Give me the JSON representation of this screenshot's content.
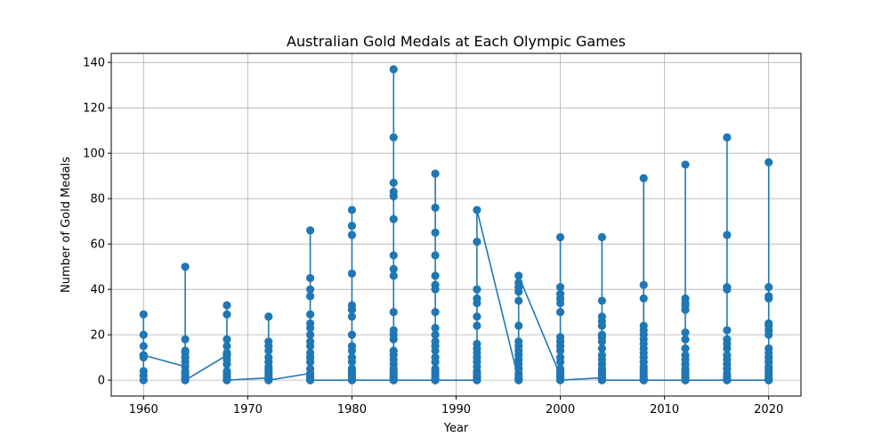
{
  "chart_data": {
    "type": "line",
    "title": "Australian Gold Medals at Each Olympic Games",
    "xlabel": "Year",
    "ylabel": "Number of Gold Medals",
    "xlim": [
      1956.9,
      2023.1
    ],
    "ylim": [
      -7,
      144
    ],
    "x_ticks": [
      1960,
      1970,
      1980,
      1990,
      2000,
      2010,
      2020
    ],
    "y_ticks": [
      0,
      20,
      40,
      60,
      80,
      100,
      120,
      140
    ],
    "grid": true,
    "color": "#1f77b4",
    "series": [
      {
        "x": [
          1960,
          1960,
          1960,
          1960,
          1960,
          1960,
          1960,
          1960,
          1960,
          1964,
          1964,
          1964,
          1964,
          1964,
          1964,
          1964,
          1964,
          1964,
          1964,
          1964,
          1964,
          1964,
          1968,
          1968,
          1968,
          1968,
          1968,
          1968,
          1968,
          1968,
          1968,
          1968,
          1968,
          1968,
          1968,
          1968,
          1972,
          1972,
          1972,
          1972,
          1972,
          1972,
          1972,
          1972,
          1972,
          1972,
          1972,
          1972,
          1972,
          1972,
          1976,
          1976,
          1976,
          1976,
          1976,
          1976,
          1976,
          1976,
          1976,
          1976,
          1976,
          1976,
          1976,
          1976,
          1976,
          1976,
          1976,
          1976,
          1976,
          1980,
          1980,
          1980,
          1980,
          1980,
          1980,
          1980,
          1980,
          1980,
          1980,
          1980,
          1980,
          1980,
          1980,
          1980,
          1980,
          1980,
          1980,
          1980,
          1980,
          1980,
          1984,
          1984,
          1984,
          1984,
          1984,
          1984,
          1984,
          1984,
          1984,
          1984,
          1984,
          1984,
          1984,
          1984,
          1984,
          1984,
          1984,
          1984,
          1984,
          1984,
          1984,
          1984,
          1984,
          1984,
          1984,
          1988,
          1988,
          1988,
          1988,
          1988,
          1988,
          1988,
          1988,
          1988,
          1988,
          1988,
          1988,
          1988,
          1988,
          1988,
          1988,
          1988,
          1988,
          1988,
          1988,
          1988,
          1988,
          1988,
          1992,
          1992,
          1992,
          1992,
          1992,
          1992,
          1992,
          1992,
          1992,
          1992,
          1992,
          1992,
          1992,
          1992,
          1992,
          1992,
          1992,
          1992,
          1992,
          1996,
          1996,
          1996,
          1996,
          1996,
          1996,
          1996,
          1996,
          1996,
          1996,
          1996,
          1996,
          1996,
          1996,
          1996,
          1996,
          1996,
          1996,
          2000,
          2000,
          2000,
          2000,
          2000,
          2000,
          2000,
          2000,
          2000,
          2000,
          2000,
          2000,
          2000,
          2000,
          2000,
          2000,
          2000,
          2000,
          2000,
          2004,
          2004,
          2004,
          2004,
          2004,
          2004,
          2004,
          2004,
          2004,
          2004,
          2004,
          2004,
          2004,
          2004,
          2004,
          2004,
          2004,
          2004,
          2004,
          2008,
          2008,
          2008,
          2008,
          2008,
          2008,
          2008,
          2008,
          2008,
          2008,
          2008,
          2008,
          2008,
          2008,
          2008,
          2008,
          2008,
          2008,
          2008,
          2008,
          2008,
          2012,
          2012,
          2012,
          2012,
          2012,
          2012,
          2012,
          2012,
          2012,
          2012,
          2012,
          2012,
          2012,
          2012,
          2012,
          2012,
          2012,
          2012,
          2012,
          2016,
          2016,
          2016,
          2016,
          2016,
          2016,
          2016,
          2016,
          2016,
          2016,
          2016,
          2016,
          2016,
          2016,
          2016,
          2016,
          2016,
          2016,
          2020,
          2020,
          2020,
          2020,
          2020,
          2020,
          2020,
          2020,
          2020,
          2020,
          2020,
          2020,
          2020,
          2020,
          2020,
          2020,
          2020,
          2020,
          2020,
          2020,
          2020
        ],
        "y": [
          11,
          0,
          4,
          2,
          29,
          20,
          15,
          10,
          11,
          6,
          0,
          2,
          1,
          18,
          50,
          13,
          12,
          10,
          8,
          4,
          3,
          0,
          11,
          0,
          2,
          1,
          3,
          4,
          7,
          9,
          12,
          15,
          18,
          29,
          33,
          0,
          1,
          0,
          2,
          3,
          4,
          6,
          8,
          10,
          13,
          15,
          17,
          28,
          5,
          0,
          3,
          0,
          1,
          2,
          5,
          8,
          10,
          12,
          17,
          20,
          23,
          25,
          29,
          37,
          40,
          45,
          66,
          15,
          0,
          0,
          0,
          1,
          2,
          3,
          5,
          8,
          10,
          13,
          15,
          20,
          28,
          31,
          33,
          47,
          64,
          68,
          75,
          5,
          4,
          0,
          0,
          0,
          1,
          2,
          3,
          5,
          7,
          9,
          11,
          13,
          18,
          20,
          22,
          30,
          46,
          49,
          55,
          71,
          81,
          83,
          87,
          107,
          137,
          4,
          0,
          0,
          0,
          1,
          2,
          3,
          5,
          8,
          10,
          13,
          15,
          17,
          20,
          23,
          30,
          40,
          42,
          46,
          55,
          65,
          76,
          91,
          4,
          0,
          0,
          0,
          1,
          2,
          3,
          4,
          6,
          8,
          10,
          12,
          14,
          16,
          24,
          28,
          34,
          36,
          40,
          61,
          75,
          0,
          0,
          1,
          2,
          3,
          5,
          7,
          9,
          11,
          13,
          15,
          17,
          24,
          35,
          39,
          41,
          43,
          46,
          2,
          0,
          1,
          3,
          5,
          8,
          10,
          13,
          15,
          17,
          19,
          30,
          34,
          36,
          38,
          41,
          63,
          4,
          0,
          1,
          0,
          2,
          3,
          5,
          7,
          9,
          11,
          14,
          17,
          19,
          20,
          24,
          26,
          28,
          35,
          63,
          4,
          0,
          0,
          0,
          1,
          2,
          3,
          4,
          5,
          6,
          8,
          10,
          12,
          14,
          16,
          18,
          20,
          22,
          24,
          36,
          42,
          89,
          0,
          0,
          0,
          1,
          2,
          3,
          5,
          7,
          9,
          11,
          14,
          18,
          21,
          31,
          33,
          34,
          36,
          95,
          4,
          0,
          0,
          0,
          1,
          2,
          3,
          5,
          7,
          9,
          11,
          14,
          16,
          18,
          22,
          40,
          41,
          64,
          107,
          0,
          0,
          0,
          1,
          2,
          3,
          4,
          5,
          6,
          8,
          10,
          12,
          14,
          20,
          22,
          24,
          25,
          36,
          37,
          41,
          96,
          0
        ]
      }
    ]
  }
}
